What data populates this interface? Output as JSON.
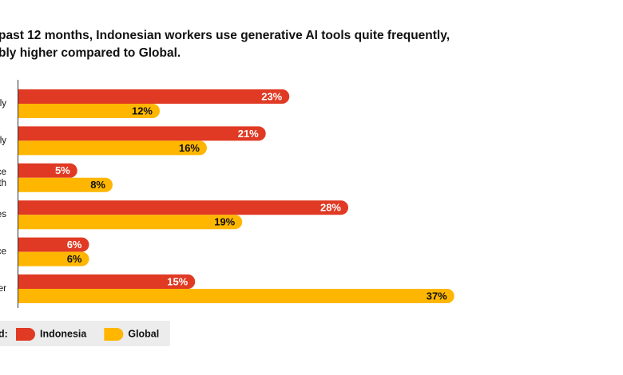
{
  "chart_data": {
    "type": "bar",
    "orientation": "horizontal",
    "title_lines": [
      "past 12 months, Indonesian workers use generative AI tools quite frequently,",
      "bly higher compared to Global."
    ],
    "categories": [
      [
        "ly"
      ],
      [
        "ly"
      ],
      [
        "ce",
        "th"
      ],
      [
        "es"
      ],
      [
        "ce"
      ],
      [
        "er"
      ]
    ],
    "series": [
      {
        "name": "Indonesia",
        "color": "#e03a24",
        "values": [
          23,
          21,
          5,
          28,
          6,
          15
        ],
        "value_labels": [
          "23%",
          "21%",
          "5%",
          "28%",
          "6%",
          "15%"
        ]
      },
      {
        "name": "Global",
        "color": "#ffb600",
        "values": [
          12,
          16,
          8,
          19,
          6,
          37
        ],
        "value_labels": [
          "12%",
          "16%",
          "8%",
          "19%",
          "6%",
          "37%"
        ]
      }
    ],
    "legend_label": "d:"
  }
}
